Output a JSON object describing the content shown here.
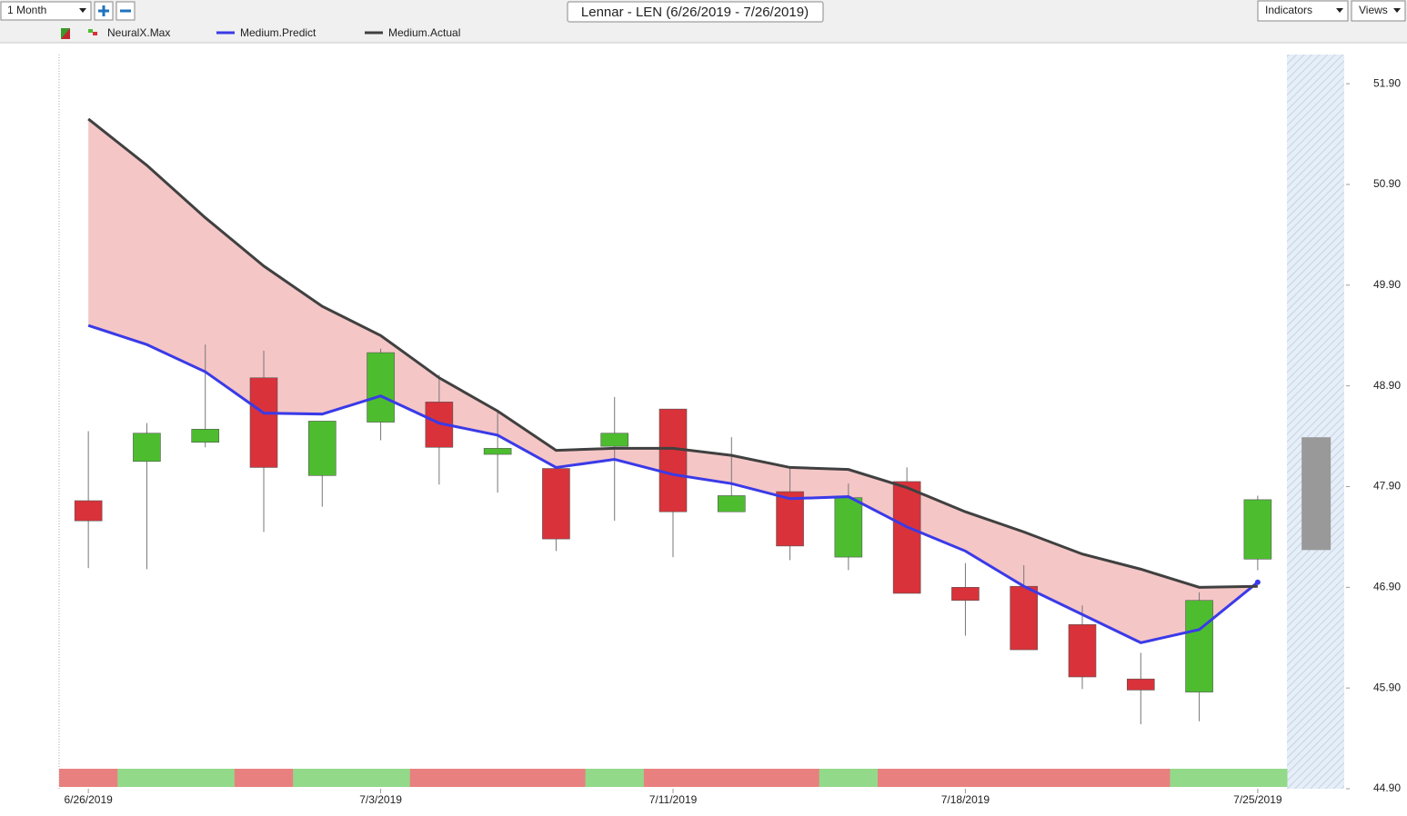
{
  "toolbar": {
    "period": "1 Month",
    "indicators": "Indicators",
    "views": "Views"
  },
  "chart_data": {
    "type": "candlestick",
    "title": "Lennar - LEN (6/26/2019 - 7/26/2019)",
    "categories": [
      "6/26/2019",
      null,
      null,
      null,
      null,
      "7/3/2019",
      null,
      null,
      null,
      null,
      "7/11/2019",
      null,
      null,
      null,
      null,
      "7/18/2019",
      null,
      null,
      null,
      null,
      "7/25/2019"
    ],
    "series": [
      {
        "name": "NeuralX.Max",
        "up_color": "#4dbd2f",
        "down_color": "#d9323a",
        "open": [
          47.76,
          48.15,
          48.34,
          48.98,
          48.01,
          48.54,
          48.74,
          48.22,
          48.08,
          48.3,
          48.67,
          47.65,
          47.85,
          47.2,
          47.95,
          46.9,
          46.91,
          46.53,
          45.99,
          45.86,
          47.18
        ],
        "high": [
          48.45,
          48.53,
          49.31,
          49.25,
          48.55,
          49.27,
          49.01,
          48.64,
          48.08,
          48.79,
          48.67,
          48.39,
          48.09,
          47.93,
          48.09,
          47.14,
          47.12,
          46.72,
          46.25,
          46.85,
          47.81
        ],
        "low": [
          47.09,
          47.08,
          48.29,
          47.45,
          47.7,
          48.36,
          47.92,
          47.84,
          47.26,
          47.56,
          47.2,
          47.65,
          47.17,
          47.07,
          46.84,
          46.42,
          46.28,
          45.89,
          45.54,
          45.57,
          47.07
        ],
        "close": [
          47.56,
          48.43,
          48.47,
          48.09,
          48.55,
          49.23,
          48.29,
          48.28,
          47.38,
          48.43,
          47.65,
          47.81,
          47.31,
          47.79,
          46.84,
          46.77,
          46.28,
          46.01,
          45.88,
          46.77,
          47.77
        ]
      },
      {
        "name": "Medium.Predict",
        "color": "#3a3ae8",
        "values": [
          49.5,
          49.31,
          49.04,
          48.63,
          48.62,
          48.8,
          48.53,
          48.41,
          48.09,
          48.17,
          48.02,
          47.93,
          47.78,
          47.8,
          47.5,
          47.26,
          46.91,
          46.63,
          46.35,
          46.48,
          46.95
        ]
      },
      {
        "name": "Medium.Actual",
        "color": "#404040",
        "values": [
          51.55,
          51.09,
          50.57,
          50.09,
          49.69,
          49.4,
          48.98,
          48.65,
          48.26,
          48.28,
          48.28,
          48.21,
          48.09,
          48.07,
          47.89,
          47.65,
          47.45,
          47.23,
          47.08,
          46.9,
          46.91
        ]
      }
    ],
    "spread_color": "#f5c6c6",
    "signal_colors": [
      "#e88080",
      "#93d98a",
      "#93d98a",
      "#e88080",
      "#93d98a",
      "#93d98a",
      "#e88080",
      "#e88080",
      "#e88080",
      "#93d98a",
      "#e88080",
      "#e88080",
      "#e88080",
      "#93d98a",
      "#e88080",
      "#e88080",
      "#e88080",
      "#e88080",
      "#e88080",
      "#93d98a",
      "#93d98a"
    ],
    "forecast": {
      "high": 48.39,
      "low": 47.27,
      "color": "#999999"
    },
    "ylim": [
      44.9,
      52.19
    ],
    "yticks": [
      {
        "value": 44.9,
        "label": "44.90"
      },
      {
        "value": 45.9,
        "label": "45.90"
      },
      {
        "value": 46.9,
        "label": "46.90"
      },
      {
        "value": 47.9,
        "label": "47.90"
      },
      {
        "value": 48.9,
        "label": "48.90"
      },
      {
        "value": 49.9,
        "label": "49.90"
      },
      {
        "value": 50.9,
        "label": "50.90"
      },
      {
        "value": 51.9,
        "label": "51.90"
      }
    ]
  }
}
